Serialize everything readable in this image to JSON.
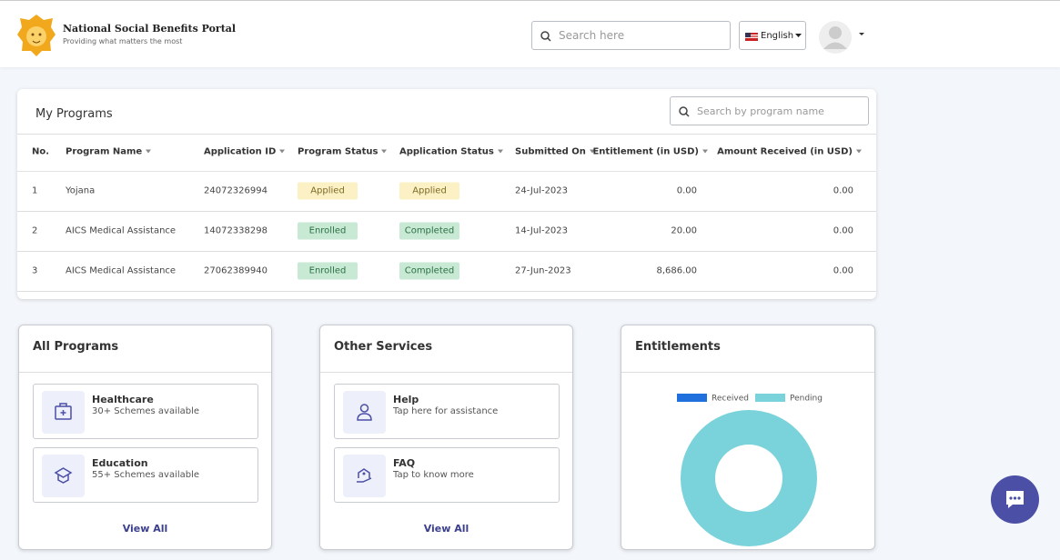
{
  "header": {
    "title": "National Social Benefits Portal",
    "subtitle": "Providing what matters the most",
    "search_placeholder": "Search here",
    "language": "English"
  },
  "my_programs": {
    "title": "My Programs",
    "search_placeholder": "Search by program name",
    "columns": [
      "No.",
      "Program Name",
      "Application ID",
      "Program Status",
      "Application Status",
      "Submitted On",
      "Entitlement (in USD)",
      "Amount Received (in USD)"
    ],
    "rows": [
      [
        "1",
        "Yojana",
        "24072326994",
        "Applied",
        "Applied",
        "24-Jul-2023",
        "0.00",
        "0.00"
      ],
      [
        "2",
        "AICS Medical Assistance",
        "14072338298",
        "Enrolled",
        "Completed",
        "14-Jul-2023",
        "20.00",
        "0.00"
      ],
      [
        "3",
        "AICS Medical Assistance",
        "27062389940",
        "Enrolled",
        "Completed",
        "27-Jun-2023",
        "8,686.00",
        "0.00"
      ]
    ]
  },
  "all_programs": {
    "title": "All Programs",
    "items": [
      {
        "title": "Healthcare",
        "subtitle": "30+ Schemes available"
      },
      {
        "title": "Education",
        "subtitle": "55+ Schemes available"
      }
    ],
    "view_all": "View All"
  },
  "other_services": {
    "title": "Other Services",
    "items": [
      {
        "title": "Help",
        "subtitle": "Tap here for assistance"
      },
      {
        "title": "FAQ",
        "subtitle": "Tap to know more"
      }
    ],
    "view_all": "View All"
  },
  "chart_data": {
    "type": "doughnut",
    "title": "Entitlements",
    "categories": [
      "Received",
      "Pending"
    ],
    "values": [
      0,
      8706
    ],
    "colors": [
      "#1f6fdc",
      "#7ad2da"
    ],
    "legend": "top"
  }
}
